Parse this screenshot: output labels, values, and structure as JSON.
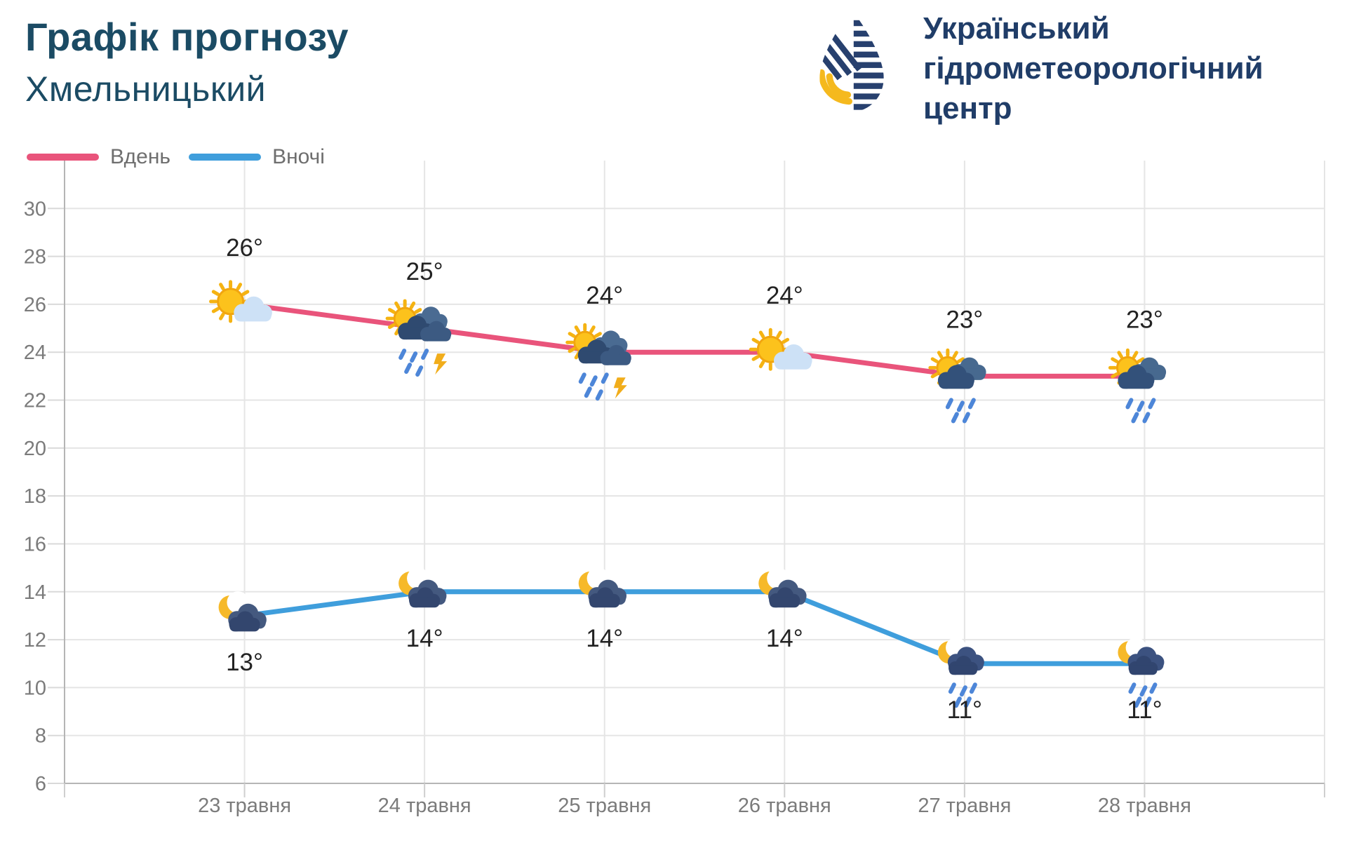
{
  "header": {
    "title_line1": "Графік прогнозу",
    "title_line2": "Хмельницький"
  },
  "logo": {
    "icon": "uhmc-drop-logo",
    "line1": "Український",
    "line2": "гідрометеорологічний",
    "line3": "центр"
  },
  "legend": {
    "items": [
      {
        "label": "Вдень",
        "color": "#e9547b"
      },
      {
        "label": "Вночі",
        "color": "#3f9edc"
      }
    ]
  },
  "chart_data": {
    "type": "line",
    "title": "Графік прогнозу Хмельницький",
    "xlabel": "",
    "ylabel": "",
    "categories": [
      "23 травня",
      "24 травня",
      "25 травня",
      "26 травня",
      "27 травня",
      "28 травня"
    ],
    "series": [
      {
        "name": "Вдень",
        "key": "day",
        "color": "#e9547b",
        "values": [
          26,
          25,
          24,
          24,
          23,
          23
        ],
        "labels": [
          "26°",
          "25°",
          "24°",
          "24°",
          "23°",
          "23°"
        ],
        "icons": [
          "sun-cloud",
          "sun-rain-lightning",
          "sun-rain-lightning",
          "sun-cloud",
          "sun-rain",
          "sun-rain"
        ]
      },
      {
        "name": "Вночі",
        "key": "night",
        "color": "#3f9edc",
        "values": [
          13,
          14,
          14,
          14,
          11,
          11
        ],
        "labels": [
          "13°",
          "14°",
          "14°",
          "14°",
          "11°",
          "11°"
        ],
        "icons": [
          "moon-cloud",
          "moon-cloud",
          "moon-cloud",
          "moon-cloud",
          "moon-rain",
          "moon-rain"
        ]
      }
    ],
    "ylim": [
      6,
      30
    ],
    "yticks": [
      6,
      8,
      10,
      12,
      14,
      16,
      18,
      20,
      22,
      24,
      26,
      28,
      30
    ],
    "grid": true,
    "legend_position": "top-left",
    "colors": {
      "grid_line": "#e5e5e5",
      "axis_line": "#b5b5b5",
      "axis_text": "#7b7b7b",
      "temp_label": "#222222"
    }
  }
}
